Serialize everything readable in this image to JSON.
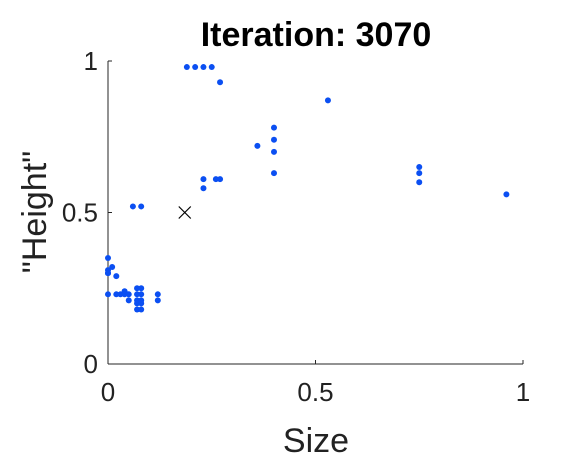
{
  "chart_data": {
    "type": "scatter",
    "title": "Iteration: 3070",
    "xlabel": "Size",
    "ylabel": "\"Height\"",
    "xlim": [
      0,
      1
    ],
    "ylim": [
      0,
      1
    ],
    "xticks": [
      0,
      0.5,
      1
    ],
    "xtick_labels": [
      "0",
      "0.5",
      "1"
    ],
    "yticks": [
      0,
      0.5,
      1
    ],
    "ytick_labels": [
      "0",
      "0.5",
      "1"
    ],
    "grid": false,
    "point_color": "#0b4ff2",
    "marker_color": "#000000",
    "series": [
      {
        "x": [
          0.0,
          0.0,
          0.0,
          0.0,
          0.0,
          0.01,
          0.02,
          0.02,
          0.03,
          0.04,
          0.04,
          0.05,
          0.05,
          0.06,
          0.08,
          0.07,
          0.08,
          0.07,
          0.08,
          0.07,
          0.08,
          0.07,
          0.08,
          0.07,
          0.08,
          0.12,
          0.12,
          0.19,
          0.21,
          0.23,
          0.25,
          0.27,
          0.23,
          0.23,
          0.26,
          0.27,
          0.53,
          0.36,
          0.4,
          0.4,
          0.4,
          0.4,
          0.75,
          0.75,
          0.75,
          0.96
        ],
        "y": [
          0.35,
          0.31,
          0.3,
          0.3,
          0.23,
          0.32,
          0.29,
          0.23,
          0.23,
          0.24,
          0.23,
          0.23,
          0.21,
          0.52,
          0.52,
          0.25,
          0.25,
          0.23,
          0.23,
          0.21,
          0.21,
          0.2,
          0.2,
          0.18,
          0.18,
          0.23,
          0.21,
          0.98,
          0.98,
          0.98,
          0.98,
          0.93,
          0.61,
          0.58,
          0.61,
          0.61,
          0.87,
          0.72,
          0.78,
          0.74,
          0.7,
          0.63,
          0.65,
          0.63,
          0.6,
          0.56
        ]
      }
    ],
    "marker": {
      "symbol": "x",
      "x": 0.185,
      "y": 0.5
    }
  }
}
